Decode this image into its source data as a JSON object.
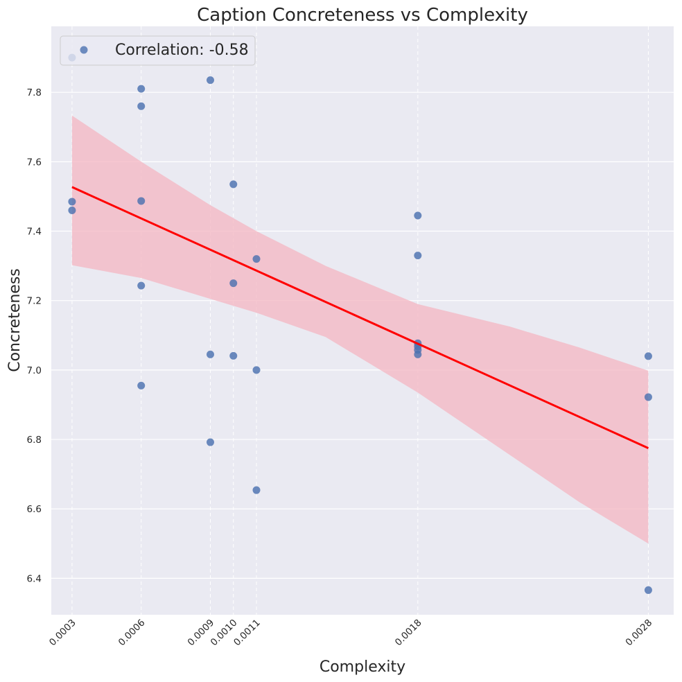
{
  "chart_data": {
    "type": "scatter",
    "title": "Caption Concreteness vs Complexity",
    "xlabel": "Complexity",
    "ylabel": "Concreteness",
    "xlim": [
      0.00021,
      0.00291
    ],
    "ylim": [
      6.295,
      7.99
    ],
    "x_ticks": [
      "0.0003",
      "0.0006",
      "0.0009",
      "0.0010",
      "0.0011",
      "0.0018",
      "0.0028"
    ],
    "x_tick_values": [
      0.0003,
      0.0006,
      0.0009,
      0.001,
      0.0011,
      0.0018,
      0.0028
    ],
    "y_ticks": [
      "6.4",
      "6.6",
      "6.8",
      "7.0",
      "7.2",
      "7.4",
      "7.6",
      "7.8"
    ],
    "y_tick_values": [
      6.4,
      6.6,
      6.8,
      7.0,
      7.2,
      7.4,
      7.6,
      7.8
    ],
    "grid": true,
    "legend": {
      "label": "Correlation: -0.58",
      "placement": "top-left"
    },
    "colors": {
      "points": "#4c72b0",
      "regression_line": "#ff0000",
      "confidence_band": "#f4b6c2",
      "background": "#eaeaf2"
    },
    "series": [
      {
        "points": [
          {
            "x": 0.0003,
            "y": 7.9
          },
          {
            "x": 0.0003,
            "y": 7.485
          },
          {
            "x": 0.0003,
            "y": 7.46
          },
          {
            "x": 0.0006,
            "y": 7.81
          },
          {
            "x": 0.0006,
            "y": 7.76
          },
          {
            "x": 0.0006,
            "y": 7.487
          },
          {
            "x": 0.0006,
            "y": 7.243
          },
          {
            "x": 0.0006,
            "y": 6.955
          },
          {
            "x": 0.0009,
            "y": 7.835
          },
          {
            "x": 0.0009,
            "y": 7.045
          },
          {
            "x": 0.0009,
            "y": 6.792
          },
          {
            "x": 0.001,
            "y": 7.535
          },
          {
            "x": 0.001,
            "y": 7.25
          },
          {
            "x": 0.001,
            "y": 7.041
          },
          {
            "x": 0.0011,
            "y": 7.32
          },
          {
            "x": 0.0011,
            "y": 7.0
          },
          {
            "x": 0.0011,
            "y": 6.654
          },
          {
            "x": 0.0018,
            "y": 7.445
          },
          {
            "x": 0.0018,
            "y": 7.33
          },
          {
            "x": 0.0018,
            "y": 7.077
          },
          {
            "x": 0.0018,
            "y": 7.068
          },
          {
            "x": 0.0018,
            "y": 7.058
          },
          {
            "x": 0.0018,
            "y": 7.045
          },
          {
            "x": 0.0028,
            "y": 7.04
          },
          {
            "x": 0.0028,
            "y": 6.922
          },
          {
            "x": 0.0028,
            "y": 6.366
          }
        ]
      }
    ],
    "regression": {
      "x": [
        0.0003,
        0.0028
      ],
      "y": [
        7.527,
        6.775
      ]
    },
    "confidence_band": [
      {
        "x": 0.0003,
        "lower": 7.302,
        "upper": 7.733
      },
      {
        "x": 0.0006,
        "lower": 7.265,
        "upper": 7.6
      },
      {
        "x": 0.0009,
        "lower": 7.205,
        "upper": 7.475
      },
      {
        "x": 0.0011,
        "lower": 7.165,
        "upper": 7.4
      },
      {
        "x": 0.0014,
        "lower": 7.095,
        "upper": 7.3
      },
      {
        "x": 0.0018,
        "lower": 6.935,
        "upper": 7.19
      },
      {
        "x": 0.0022,
        "lower": 6.755,
        "upper": 7.125
      },
      {
        "x": 0.0025,
        "lower": 6.62,
        "upper": 7.065
      },
      {
        "x": 0.0028,
        "lower": 6.5,
        "upper": 6.998
      }
    ]
  }
}
